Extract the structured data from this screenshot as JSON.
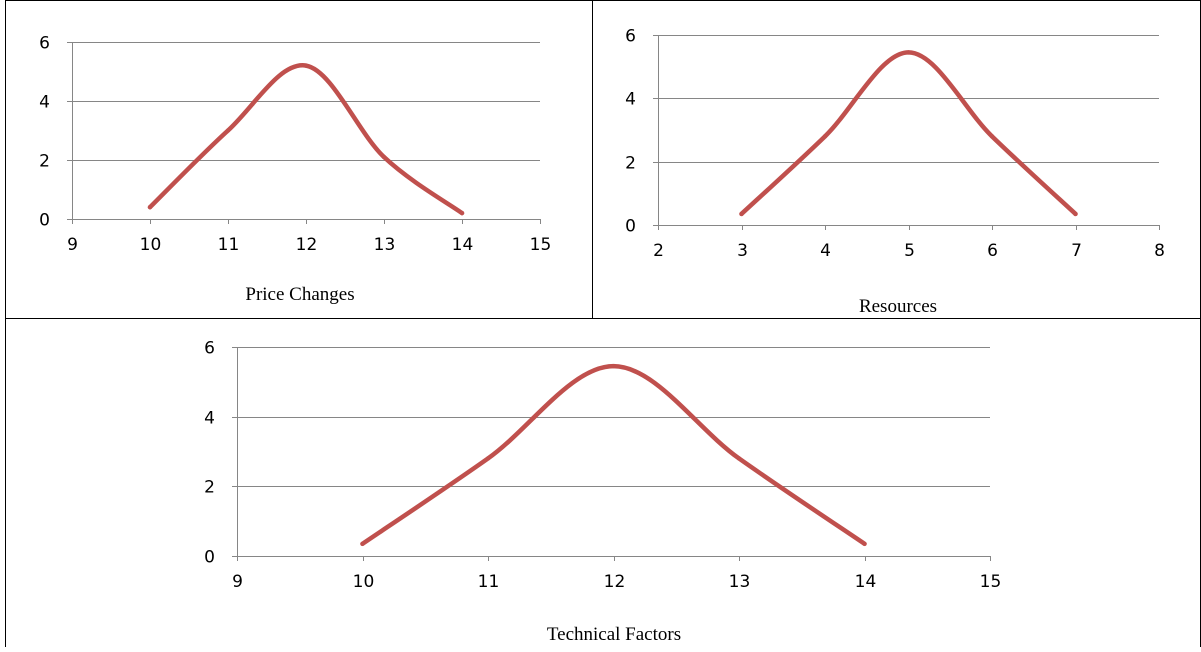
{
  "colors": {
    "line": "#c0504d",
    "grid": "#868686",
    "border": "#000000"
  },
  "chart_data": [
    {
      "type": "line",
      "title": "Price Changes",
      "xlabel": "",
      "ylabel": "",
      "xlim": [
        9,
        15
      ],
      "ylim": [
        0,
        6
      ],
      "xticks": [
        "9",
        "10",
        "11",
        "12",
        "13",
        "14",
        "15"
      ],
      "yticks": [
        "0",
        "2",
        "4",
        "6"
      ],
      "grid": true,
      "smooth": true,
      "series": [
        {
          "x": [
            10,
            11,
            12,
            13,
            14
          ],
          "y": [
            0.4,
            3.0,
            5.2,
            2.1,
            0.2
          ]
        }
      ]
    },
    {
      "type": "line",
      "title": "Resources",
      "xlabel": "",
      "ylabel": "",
      "xlim": [
        2,
        8
      ],
      "ylim": [
        0,
        6
      ],
      "xticks": [
        "2",
        "3",
        "4",
        "5",
        "6",
        "7",
        "8"
      ],
      "yticks": [
        "0",
        "2",
        "4",
        "6"
      ],
      "grid": true,
      "smooth": true,
      "series": [
        {
          "x": [
            3,
            4,
            5,
            6,
            7
          ],
          "y": [
            0.35,
            2.8,
            5.45,
            2.8,
            0.35
          ]
        }
      ]
    },
    {
      "type": "line",
      "title": "Technical Factors",
      "xlabel": "",
      "ylabel": "",
      "xlim": [
        9,
        15
      ],
      "ylim": [
        0,
        6
      ],
      "xticks": [
        "9",
        "10",
        "11",
        "12",
        "13",
        "14",
        "15"
      ],
      "yticks": [
        "0",
        "2",
        "4",
        "6"
      ],
      "grid": true,
      "smooth": true,
      "series": [
        {
          "x": [
            10,
            11,
            12,
            13,
            14
          ],
          "y": [
            0.35,
            2.8,
            5.45,
            2.8,
            0.35
          ]
        }
      ]
    }
  ]
}
